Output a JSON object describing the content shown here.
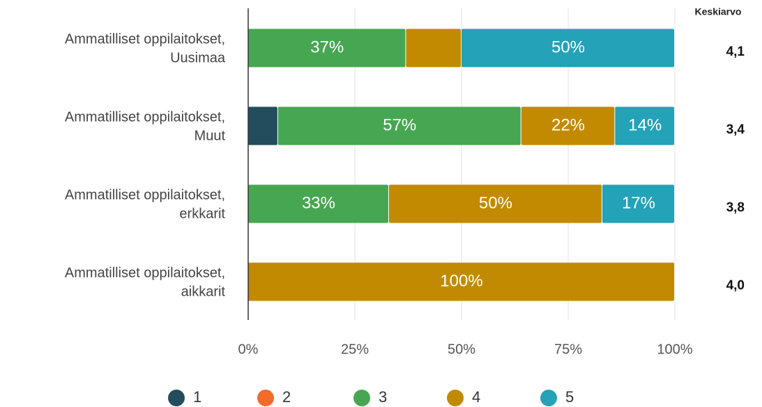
{
  "chart_data": {
    "type": "stacked_barh",
    "categories": [
      [
        "Ammatilliset oppilaitokset,",
        "Uusimaa"
      ],
      [
        "Ammatilliset oppilaitokset,",
        "Muut"
      ],
      [
        "Ammatilliset oppilaitokset,",
        "erkkarit"
      ],
      [
        "Ammatilliset oppilaitokset,",
        "aikkarit"
      ]
    ],
    "series": [
      {
        "name": "1",
        "color": "#234d5c",
        "values": [
          0,
          7,
          0,
          0
        ],
        "value_labels": [
          null,
          null,
          null,
          null
        ]
      },
      {
        "name": "2",
        "color": "#f26b2a",
        "values": [
          0,
          0,
          0,
          0
        ],
        "value_labels": [
          null,
          null,
          null,
          null
        ]
      },
      {
        "name": "3",
        "color": "#47a652",
        "values": [
          37,
          57,
          33,
          0
        ],
        "value_labels": [
          "37%",
          "57%",
          "33%",
          null
        ]
      },
      {
        "name": "4",
        "color": "#c28a00",
        "values": [
          13,
          22,
          50,
          100
        ],
        "value_labels": [
          null,
          "22%",
          "50%",
          "100%"
        ]
      },
      {
        "name": "5",
        "color": "#23a2b8",
        "values": [
          50,
          14,
          17,
          0
        ],
        "value_labels": [
          "50%",
          "14%",
          "17%",
          null
        ]
      }
    ],
    "xlim": [
      0,
      100
    ],
    "xticks": [
      {
        "value": 0,
        "label": "0%"
      },
      {
        "value": 25,
        "label": "25%"
      },
      {
        "value": 50,
        "label": "50%"
      },
      {
        "value": 75,
        "label": "75%"
      },
      {
        "value": 100,
        "label": "100%"
      }
    ],
    "grid": true,
    "legend": "bottom",
    "mean_title": "Keskiarvo",
    "mean_values": [
      4.1,
      3.4,
      3.8,
      4.0
    ],
    "mean_labels": [
      "4,1",
      "3,4",
      "3,8",
      "4,0"
    ]
  }
}
